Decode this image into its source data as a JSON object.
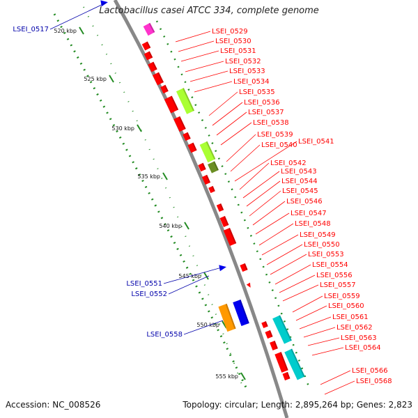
{
  "title": "Lactobacillus casei ATCC 334, complete genome",
  "accession": "Accession: NC_008526",
  "topology": "Topology: circular; Length: 2,895,264 bp; Genes: 2,823",
  "kbp_labels": [
    "520 kbp",
    "525 kbp",
    "530 kbp",
    "535 kbp",
    "540 kbp",
    "545 kbp",
    "550 kbp",
    "555 kbp"
  ],
  "minus_strand_labels": [
    "LSEI_0517",
    "LSEI_0551",
    "LSEI_0552",
    "LSEI_0558"
  ],
  "plus_strand_labels": [
    "LSEI_0529",
    "LSEI_0530",
    "LSEI_0531",
    "LSEI_0532",
    "LSEI_0533",
    "LSEI_0534",
    "LSEI_0535",
    "LSEI_0536",
    "LSEI_0537",
    "LSEI_0538",
    "LSEI_0539",
    "LSEI_0540",
    "LSEI_0541",
    "LSEI_0542",
    "LSEI_0543",
    "LSEI_0544",
    "LSEI_0545",
    "LSEI_0546",
    "LSEI_0547",
    "LSEI_0548",
    "LSEI_0549",
    "LSEI_0550",
    "LSEI_0553",
    "LSEI_0554",
    "LSEI_0556",
    "LSEI_0557",
    "LSEI_0559",
    "LSEI_0560",
    "LSEI_0561",
    "LSEI_0562",
    "LSEI_0563",
    "LSEI_0564",
    "LSEI_0566",
    "LSEI_0568"
  ],
  "colors": {
    "backbone": "#888888",
    "plus_gene": "#ff0000",
    "minus_gene": "#0000ee",
    "rna_magenta": "#ff33cc",
    "lime": "#aaff33",
    "olive": "#6b8e23",
    "cyan": "#00cccc",
    "orange": "#ff9900",
    "tick_green": "#228b22",
    "label_red": "#ff0000",
    "label_blue": "#0000aa"
  }
}
